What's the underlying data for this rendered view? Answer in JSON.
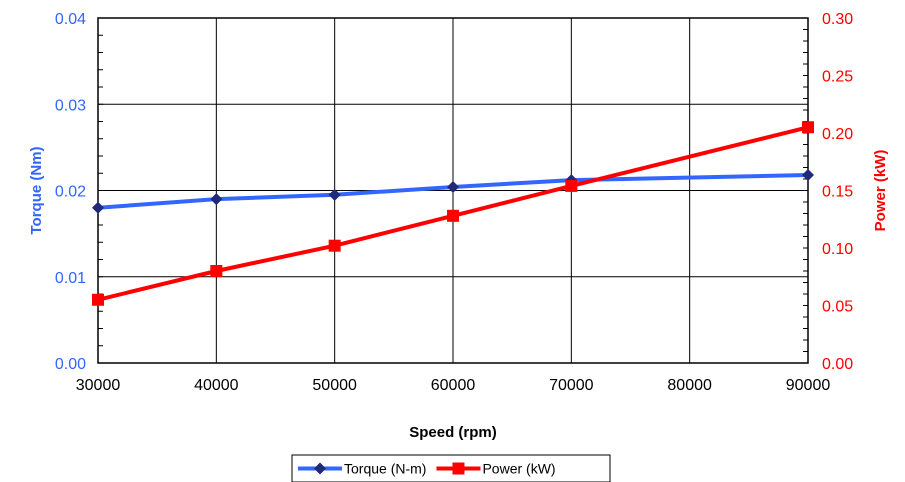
{
  "chart_data": {
    "type": "line",
    "title": "",
    "xlabel": "Speed (rpm)",
    "ylabel_left": "Torque (Nm)",
    "ylabel_right": "Power (kW)",
    "xlim": [
      30000,
      90000
    ],
    "ylim_left": [
      0,
      0.04
    ],
    "ylim_right": [
      0,
      0.3
    ],
    "x_ticks": [
      "30000",
      "40000",
      "50000",
      "60000",
      "70000",
      "80000",
      "90000"
    ],
    "y_left_ticks": [
      "0.00",
      "0.01",
      "0.02",
      "0.03",
      "0.04"
    ],
    "y_right_ticks": [
      "0.00",
      "0.05",
      "0.10",
      "0.15",
      "0.20",
      "0.25",
      "0.30"
    ],
    "grid": true,
    "legend_position": "bottom-center",
    "series": [
      {
        "name": "Torque (N-m)",
        "axis": "left",
        "color": "#3366ff",
        "marker": "diamond",
        "marker_color": "#1f2a7a",
        "x": [
          30000,
          40000,
          50000,
          60000,
          70000,
          90000
        ],
        "values": [
          0.018,
          0.019,
          0.0195,
          0.0204,
          0.0212,
          0.0218
        ]
      },
      {
        "name": "Power (kW)",
        "axis": "right",
        "color": "#ff0000",
        "marker": "square",
        "marker_color": "#ff0000",
        "x": [
          30000,
          40000,
          50000,
          60000,
          70000,
          90000
        ],
        "values": [
          0.055,
          0.08,
          0.102,
          0.128,
          0.154,
          0.205
        ]
      }
    ]
  }
}
